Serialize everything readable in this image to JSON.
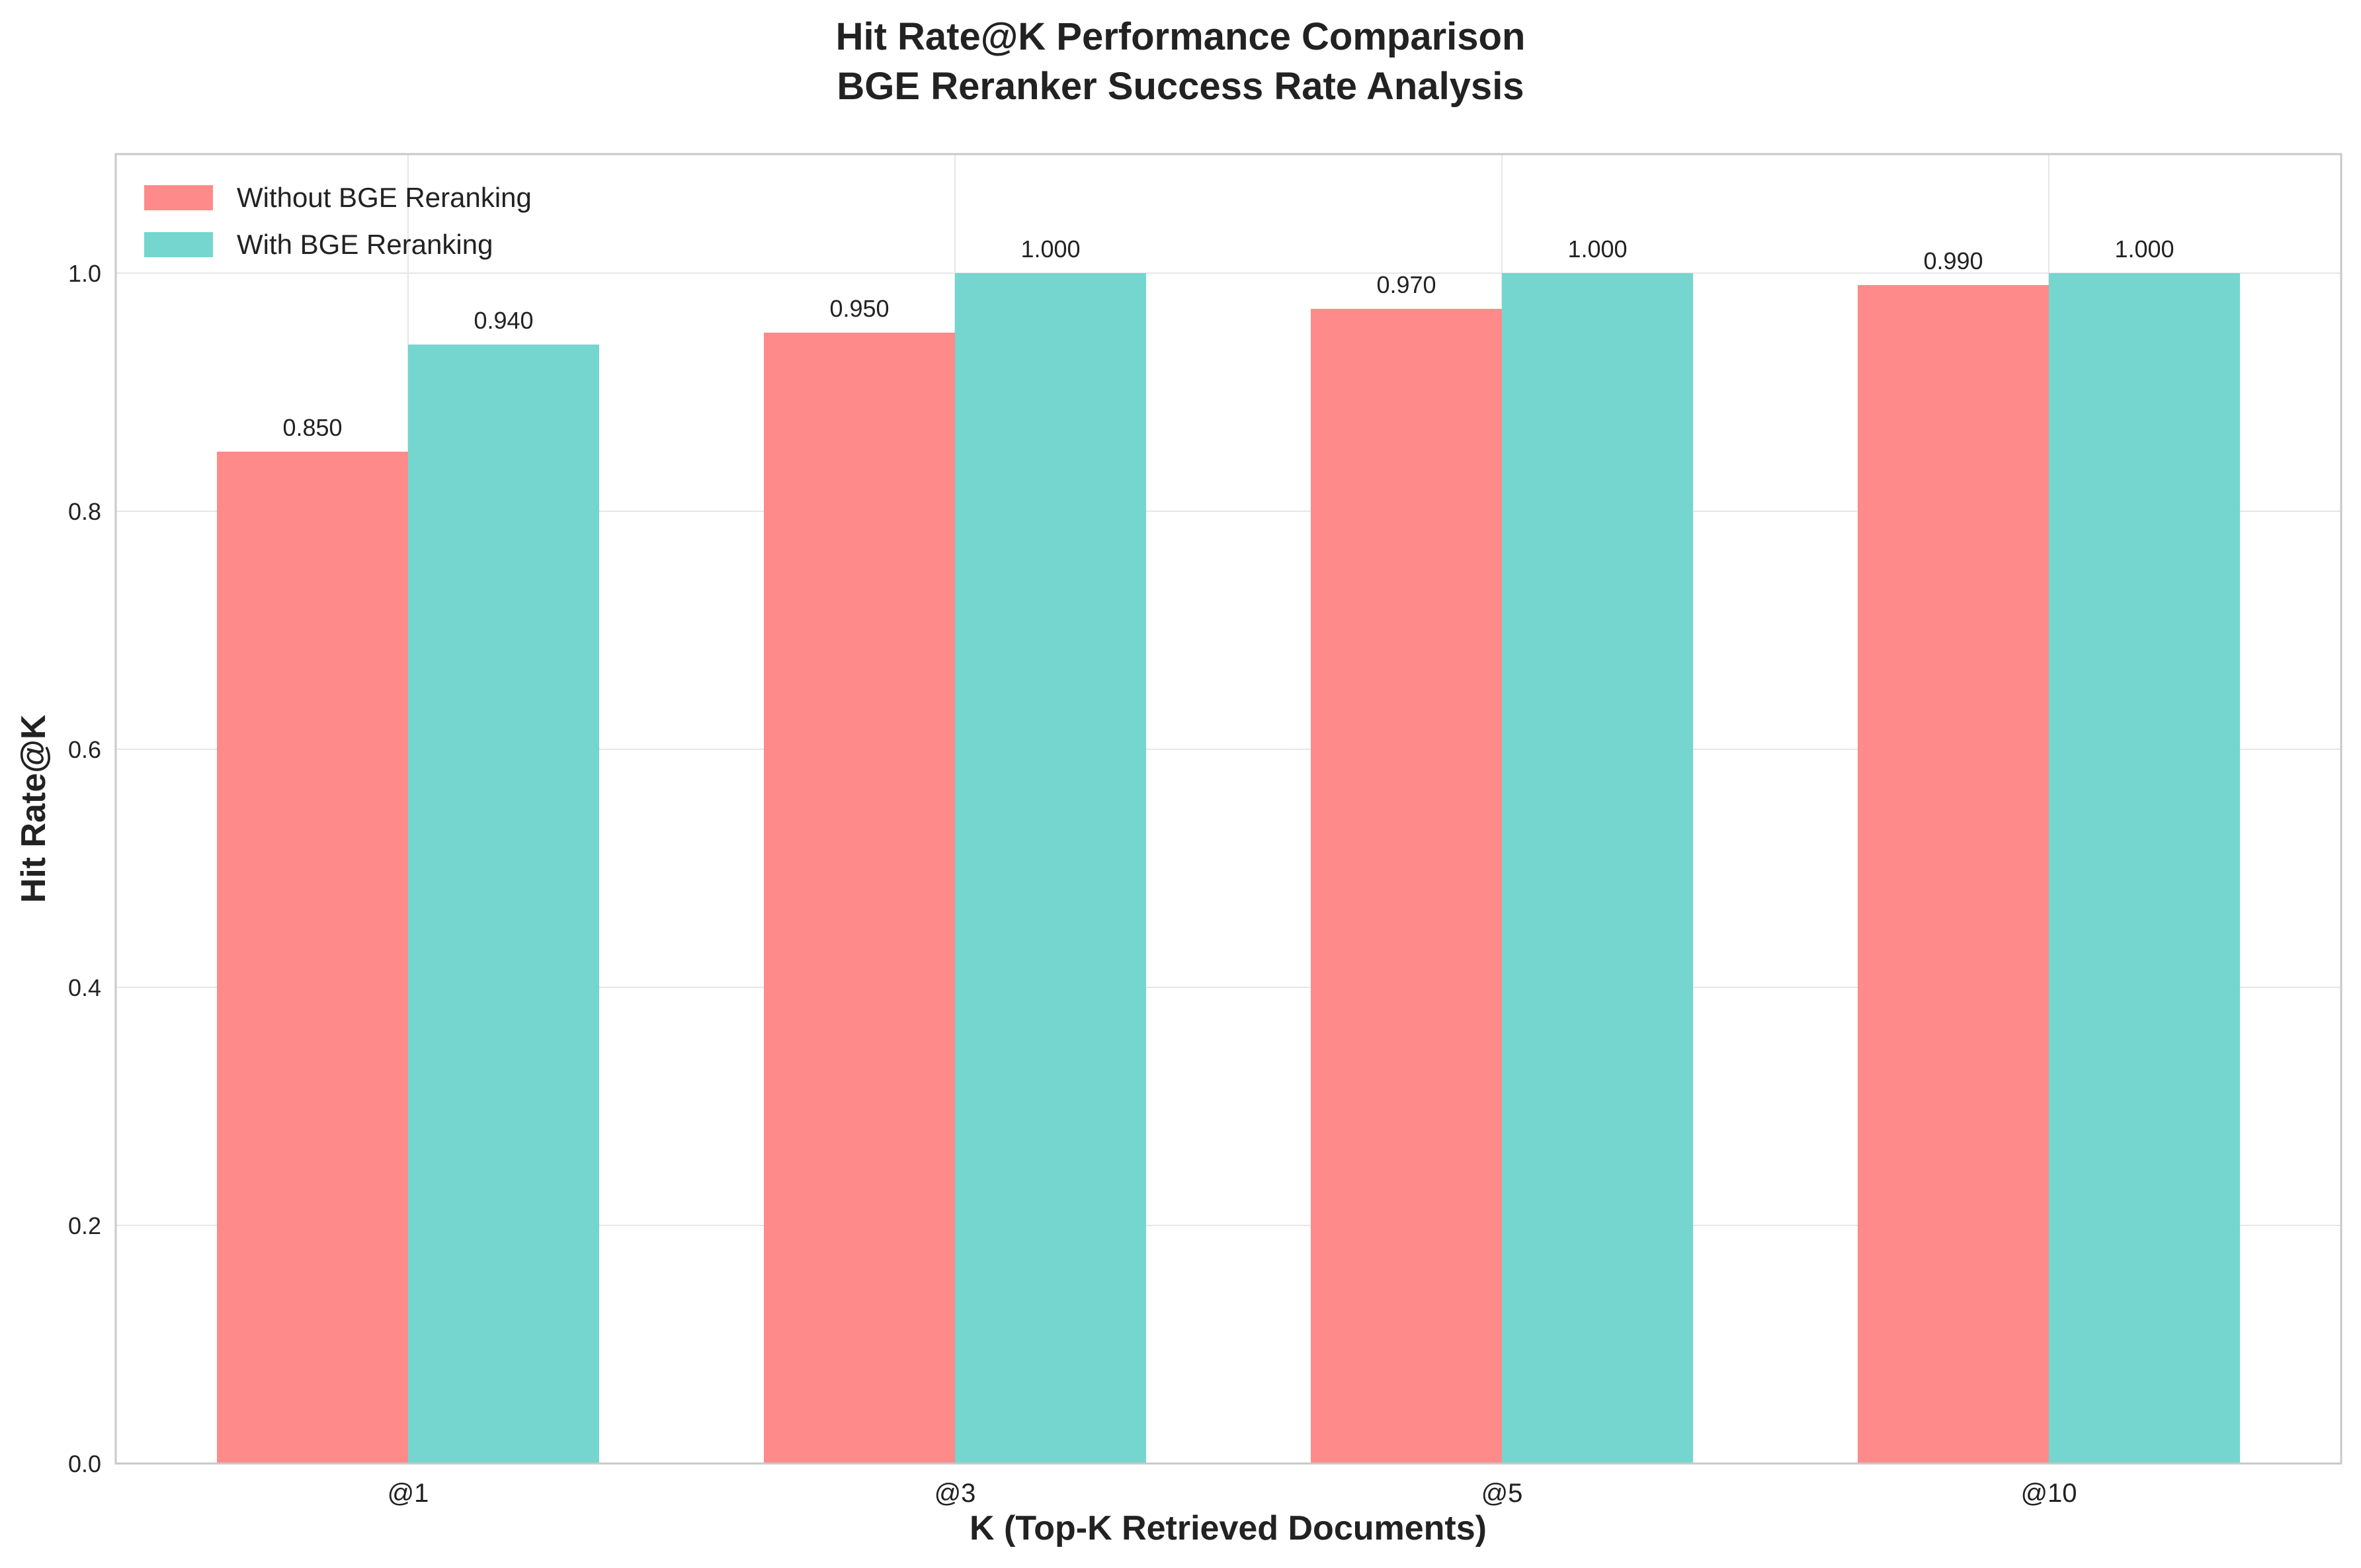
{
  "chart_data": {
    "type": "bar",
    "title": "Hit Rate@K Performance Comparison",
    "subtitle": "BGE Reranker Success Rate Analysis",
    "xlabel": "K (Top-K Retrieved Documents)",
    "ylabel": "Hit Rate@K",
    "categories": [
      "@1",
      "@3",
      "@5",
      "@10"
    ],
    "ylim": [
      0,
      1.1
    ],
    "yticks": [
      0.0,
      0.2,
      0.4,
      0.6,
      0.8,
      1.0
    ],
    "ytick_labels": [
      "0.0",
      "0.2",
      "0.4",
      "0.6",
      "0.8",
      "1.0"
    ],
    "grid": true,
    "legend_position": "top-left",
    "series": [
      {
        "name": "Without BGE Reranking",
        "color": "#FF8A8A",
        "values": [
          0.85,
          0.95,
          0.97,
          0.99
        ],
        "labels": [
          "0.850",
          "0.950",
          "0.970",
          "0.990"
        ]
      },
      {
        "name": "With BGE Reranking",
        "color": "#74D6CF",
        "values": [
          0.94,
          1.0,
          1.0,
          1.0
        ],
        "labels": [
          "0.940",
          "1.000",
          "1.000",
          "1.000"
        ]
      }
    ]
  }
}
